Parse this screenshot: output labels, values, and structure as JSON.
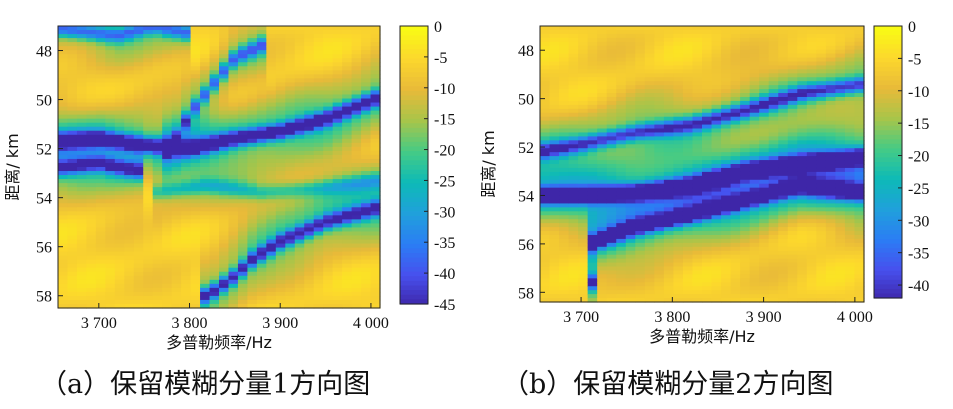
{
  "chart_data": [
    {
      "type": "heatmap",
      "caption": "（a）保留模糊分量1方向图",
      "xlabel": "多普勒频率/Hz",
      "ylabel": "距离/ km",
      "x_ticks": [
        {
          "v": 3700,
          "t": "3 700"
        },
        {
          "v": 3800,
          "t": "3 800"
        },
        {
          "v": 3900,
          "t": "3 900"
        },
        {
          "v": 4000,
          "t": "4 000"
        }
      ],
      "y_ticks": [
        {
          "v": 48,
          "t": "48"
        },
        {
          "v": 50,
          "t": "50"
        },
        {
          "v": 52,
          "t": "52"
        },
        {
          "v": 54,
          "t": "54"
        },
        {
          "v": 56,
          "t": "56"
        },
        {
          "v": 58,
          "t": "58"
        }
      ],
      "xlim": [
        3655,
        4010
      ],
      "ylim": [
        47.0,
        58.5
      ],
      "colorbar": {
        "min": -45,
        "max": 0,
        "ticks": [
          "0",
          "-5",
          "-10",
          "-15",
          "-20",
          "-25",
          "-30",
          "-35",
          "-40",
          "-45"
        ],
        "tick_values": [
          0,
          -5,
          -10,
          -15,
          -20,
          -25,
          -30,
          -35,
          -40,
          -45
        ]
      },
      "colormap": "parula",
      "ridges": [
        {
          "x": [
            3655,
            3700,
            3760,
            3800,
            3850,
            3900,
            3950,
            4010
          ],
          "y": [
            51.7,
            51.6,
            51.9,
            52.0,
            51.6,
            51.3,
            50.8,
            49.9
          ],
          "depth": -35
        },
        {
          "x": [
            3655,
            3700,
            3740
          ],
          "y": [
            52.8,
            52.6,
            52.9
          ],
          "depth": -25
        },
        {
          "x": [
            3780,
            3800,
            3830,
            3850,
            3880
          ],
          "y": [
            52.0,
            50.6,
            49.2,
            48.3,
            47.8
          ],
          "depth": -22
        },
        {
          "x": [
            3655,
            3720,
            3760,
            3800
          ],
          "y": [
            47.1,
            47.4,
            47.0,
            47.3
          ],
          "depth": -22
        },
        {
          "x": [
            3820,
            3850,
            3870,
            3900,
            3950,
            4010
          ],
          "y": [
            58.0,
            57.2,
            56.5,
            55.8,
            55.0,
            54.4
          ],
          "depth": -30
        },
        {
          "x": [
            3760,
            3820,
            3880,
            3950,
            4010
          ],
          "y": [
            53.8,
            53.5,
            53.8,
            53.6,
            53.3
          ],
          "depth": -12
        }
      ]
    },
    {
      "type": "heatmap",
      "caption": "（b）保留模糊分量2方向图",
      "xlabel": "多普勒频率/Hz",
      "ylabel": "距离/ km",
      "x_ticks": [
        {
          "v": 3700,
          "t": "3 700"
        },
        {
          "v": 3800,
          "t": "3 800"
        },
        {
          "v": 3900,
          "t": "3 900"
        },
        {
          "v": 4000,
          "t": "4 000"
        }
      ],
      "y_ticks": [
        {
          "v": 48,
          "t": "48"
        },
        {
          "v": 50,
          "t": "50"
        },
        {
          "v": 52,
          "t": "52"
        },
        {
          "v": 54,
          "t": "54"
        },
        {
          "v": 56,
          "t": "56"
        },
        {
          "v": 58,
          "t": "58"
        }
      ],
      "xlim": [
        3655,
        4010
      ],
      "ylim": [
        47.0,
        58.4
      ],
      "colorbar": {
        "min": -42,
        "max": 0,
        "ticks": [
          "0",
          "-5",
          "-10",
          "-15",
          "-20",
          "-25",
          "-30",
          "-35",
          "-40"
        ],
        "tick_values": [
          0,
          -5,
          -10,
          -15,
          -20,
          -25,
          -30,
          -35,
          -40
        ]
      },
      "colormap": "parula",
      "ridges": [
        {
          "x": [
            3655,
            3700,
            3760,
            3820,
            3880,
            3940,
            4010
          ],
          "y": [
            52.2,
            51.9,
            51.4,
            51.1,
            50.5,
            49.8,
            49.4
          ],
          "depth": -25
        },
        {
          "x": [
            3655,
            3700,
            3760,
            3820,
            3880,
            3940,
            4010
          ],
          "y": [
            54.0,
            54.0,
            53.9,
            53.6,
            53.0,
            52.7,
            52.4
          ],
          "depth": -40
        },
        {
          "x": [
            3710,
            3760,
            3820,
            3880,
            3940,
            4010
          ],
          "y": [
            56.0,
            55.3,
            54.8,
            54.2,
            53.6,
            53.9
          ],
          "depth": -35
        },
        {
          "x": [
            3708,
            3712,
            3716
          ],
          "y": [
            56.5,
            57.5,
            58.3
          ],
          "depth": -25
        }
      ]
    }
  ]
}
